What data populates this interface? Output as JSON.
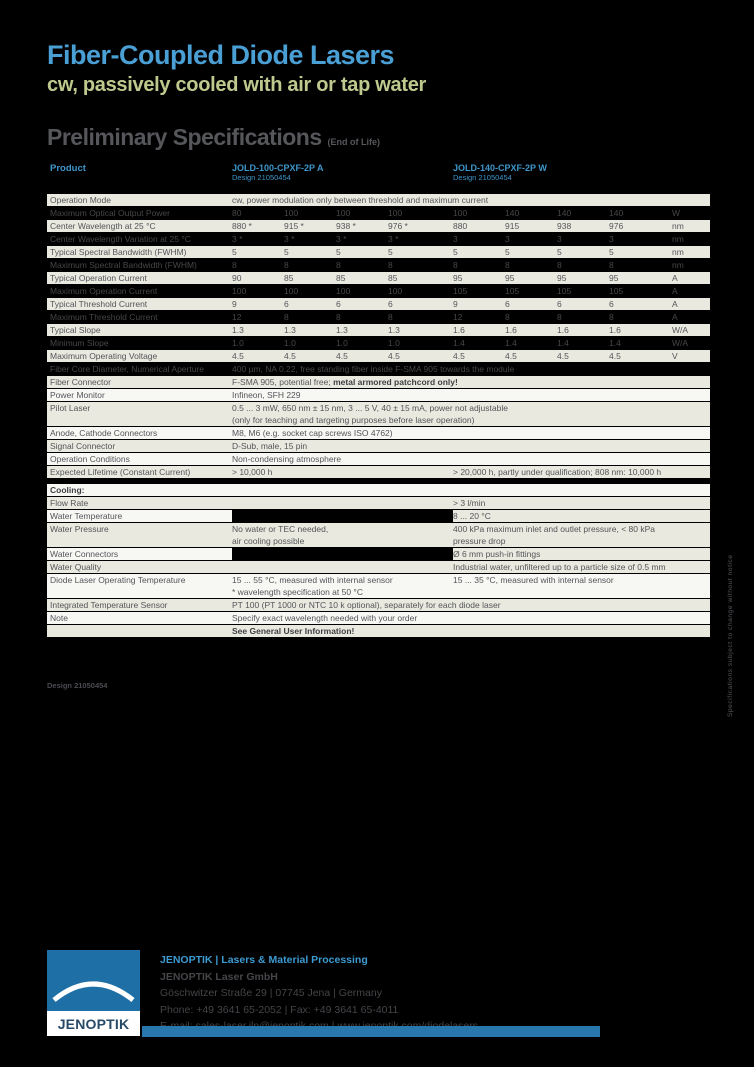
{
  "page": {
    "title": "Fiber-Coupled Diode Lasers",
    "subtitle": "cw, passively cooled with air or tap water",
    "section_heading": "Preliminary Specifications",
    "section_heading_note": "(End of Life)",
    "design_note": "Design 21050454",
    "side_note": "Specifications subject to change without notice",
    "accent_blue": "#4a9fd4",
    "accent_olive": "#bec98e",
    "row_shade": "#e9e9df"
  },
  "table": {
    "header": {
      "product_label": "Product",
      "col_a_name": "JOLD-100-CPXF-2P A",
      "col_a_design": "Design 21050454",
      "col_w_name": "JOLD-140-CPXF-2P W",
      "col_w_design": "Design 21050454"
    },
    "rows": [
      {
        "label": "Operation Mode",
        "bg": "olive",
        "span": "cw, power modulation only between threshold and maximum current"
      },
      {
        "label": "Maximum Optical Output Power",
        "bg": "dark",
        "a": [
          "80",
          "100",
          "100",
          "100"
        ],
        "w": [
          "100",
          "140",
          "140",
          "140"
        ],
        "unit": "W"
      },
      {
        "label": "Center Wavelength at 25 °C",
        "bg": "olive",
        "a": [
          "880 *",
          "915 *",
          "938 *",
          "976 *"
        ],
        "w": [
          "880",
          "915",
          "938",
          "976"
        ],
        "unit": "nm"
      },
      {
        "label": "Center Wavelength Variation at 25 °C",
        "bg": "dark",
        "a": [
          "3 *",
          "3 *",
          "3 *",
          "3 *"
        ],
        "w": [
          "3",
          "3",
          "3",
          "3"
        ],
        "unit": "nm"
      },
      {
        "label": "Typical Spectral Bandwidth (FWHM)",
        "bg": "olive",
        "a": [
          "5",
          "5",
          "5",
          "5"
        ],
        "w": [
          "5",
          "5",
          "5",
          "5"
        ],
        "unit": "nm"
      },
      {
        "label": "Maximum Spectral Bandwidth (FWHM)",
        "bg": "dark",
        "a": [
          "8",
          "8",
          "8",
          "8"
        ],
        "w": [
          "8",
          "8",
          "8",
          "8"
        ],
        "unit": "nm"
      },
      {
        "label": "Typical Operation Current",
        "bg": "olive",
        "a": [
          "90",
          "85",
          "85",
          "85"
        ],
        "w": [
          "95",
          "95",
          "95",
          "95"
        ],
        "unit": "A"
      },
      {
        "label": "Maximum Operation Current",
        "bg": "dark",
        "a": [
          "100",
          "100",
          "100",
          "100"
        ],
        "w": [
          "105",
          "105",
          "105",
          "105"
        ],
        "unit": "A"
      },
      {
        "label": "Typical Threshold Current",
        "bg": "olive",
        "a": [
          "9",
          "6",
          "6",
          "6"
        ],
        "w": [
          "9",
          "6",
          "6",
          "6"
        ],
        "unit": "A"
      },
      {
        "label": "Maximum Threshold Current",
        "bg": "dark",
        "a": [
          "12",
          "8",
          "8",
          "8"
        ],
        "w": [
          "12",
          "8",
          "8",
          "8"
        ],
        "unit": "A"
      },
      {
        "label": "Typical Slope",
        "bg": "olive",
        "a": [
          "1.3",
          "1.3",
          "1.3",
          "1.3"
        ],
        "w": [
          "1.6",
          "1.6",
          "1.6",
          "1.6"
        ],
        "unit": "W/A"
      },
      {
        "label": "Minimum Slope",
        "bg": "dark",
        "a": [
          "1.0",
          "1.0",
          "1.0",
          "1.0"
        ],
        "w": [
          "1.4",
          "1.4",
          "1.4",
          "1.4"
        ],
        "unit": "W/A"
      },
      {
        "label": "Maximum Operating Voltage",
        "bg": "olive",
        "a": [
          "4.5",
          "4.5",
          "4.5",
          "4.5"
        ],
        "w": [
          "4.5",
          "4.5",
          "4.5",
          "4.5"
        ],
        "unit": "V"
      },
      {
        "label": "Fiber Core Diameter, Numerical Aperture",
        "bg": "dark",
        "span": "400 µm, NA 0.22, free standing fiber inside F-SMA 905 towards the module"
      },
      {
        "label": "Fiber Connector",
        "bg": "olive",
        "span": "F-SMA 905, potential free; ",
        "span_bold": "metal armored patchcord only!"
      },
      {
        "label": "Power Monitor",
        "bg": "white",
        "span": "Infineon, SFH 229"
      },
      {
        "label": "Pilot Laser",
        "bg": "olive",
        "h2": true,
        "ta": [
          "0.5 ... 3 mW, 650 nm ± 15 nm, 3 ... 5 V, 40 ± 15 mA, power not adjustable",
          "(only for teaching and targeting purposes before laser operation)"
        ]
      },
      {
        "label": "Anode, Cathode Connectors",
        "bg": "white",
        "span": "M8, M6 (e.g. socket cap screws ISO 4762)"
      },
      {
        "label": "Signal Connector",
        "bg": "olive",
        "span": "D-Sub, male, 15 pin"
      },
      {
        "label": "Operation Conditions",
        "bg": "white",
        "span": "Non-condensing atmosphere"
      },
      {
        "label": "Expected Lifetime (Constant Current)",
        "bg": "olive",
        "ta": [
          "> 10,000 h"
        ],
        "tw": [
          "> 20,000 h, partly under qualification; 808 nm: 10,000 h"
        ]
      },
      {
        "gap": true
      },
      {
        "label": "Cooling:",
        "bg": "white",
        "bold_label": true
      },
      {
        "label": "Flow Rate",
        "bg": "olive",
        "tw": [
          "> 3 l/min"
        ]
      },
      {
        "label": "Water Temperature",
        "bg": "mixed",
        "tw": [
          "8 ... 20 °C"
        ]
      },
      {
        "label": "Water Pressure",
        "bg": "olive",
        "h2": true,
        "mid": [
          "No water or TEC needed,",
          "air cooling possible"
        ],
        "tw": [
          "400 kPa maximum inlet and outlet pressure, < 80 kPa",
          "pressure drop"
        ]
      },
      {
        "label": "Water Connectors",
        "bg": "mixed",
        "tw": [
          "Ø 6 mm push-in fittings"
        ]
      },
      {
        "label": "Water Quality",
        "bg": "olive",
        "tw": [
          "Industrial water, unfiltered up to a particle size of 0.5 mm"
        ]
      },
      {
        "label": "Diode Laser Operating Temperature",
        "bg": "white",
        "h2": true,
        "ta": [
          "15 ... 55 °C, measured with internal sensor",
          "* wavelength specification at 50 °C"
        ],
        "tw": [
          "15 ... 35 °C, measured with internal sensor"
        ]
      },
      {
        "label": "Integrated Temperature Sensor",
        "bg": "olive",
        "span": "PT 100 (PT 1000 or NTC 10 k optional), separately for each diode laser"
      },
      {
        "label": "Note",
        "bg": "white",
        "span": "Specify exact wavelength needed with your order"
      },
      {
        "label": "",
        "bg": "olive",
        "span": "",
        "span_bold": "See General User Information!"
      }
    ]
  },
  "footer": {
    "logo_text": "JENOPTIK",
    "line1": "JENOPTIK  |  Lasers & Material Processing",
    "line2": "JENOPTIK Laser GmbH",
    "line3": "Göschwitzer Straße 29  |  07745 Jena  |  Germany",
    "line4": "Phone: +49 3641 65-2052  |  Fax: +49 3641 65-4011",
    "line5": "E-mail: sales-laser.jln@jenoptik.com  |  www.jenoptik.com/diodelasers"
  }
}
